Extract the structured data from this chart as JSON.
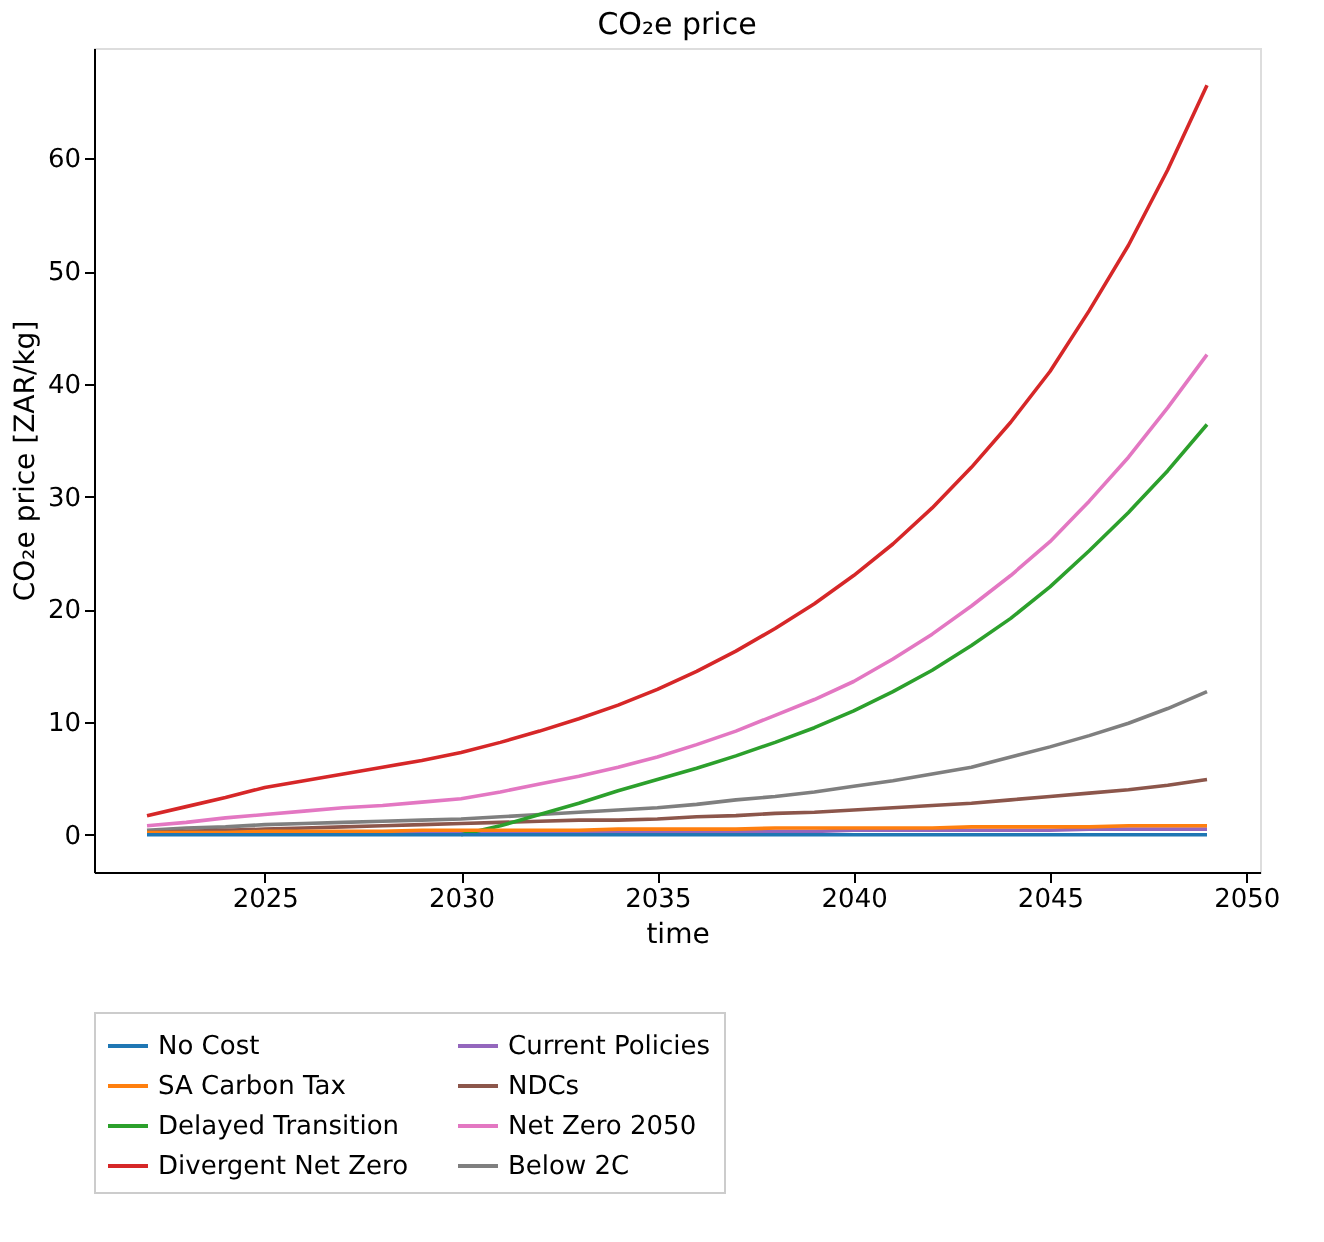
{
  "chart_data": {
    "type": "line",
    "title": "CO₂e price",
    "xlabel": "time",
    "ylabel": "CO₂e price [ZAR/kg]",
    "x": [
      2022,
      2023,
      2024,
      2025,
      2026,
      2027,
      2028,
      2029,
      2030,
      2031,
      2032,
      2033,
      2034,
      2035,
      2036,
      2037,
      2038,
      2039,
      2040,
      2041,
      2042,
      2043,
      2044,
      2045,
      2046,
      2047,
      2048,
      2049
    ],
    "series": [
      {
        "name": "No Cost",
        "color": "#1f77b4",
        "values": [
          0,
          0,
          0,
          0,
          0,
          0,
          0,
          0,
          0,
          0,
          0,
          0,
          0,
          0,
          0,
          0,
          0,
          0,
          0,
          0,
          0,
          0,
          0,
          0,
          0,
          0,
          0,
          0
        ]
      },
      {
        "name": "SA Carbon Tax",
        "color": "#ff7f0e",
        "values": [
          0.2,
          0.2,
          0.2,
          0.3,
          0.3,
          0.3,
          0.3,
          0.4,
          0.4,
          0.4,
          0.4,
          0.4,
          0.5,
          0.5,
          0.5,
          0.5,
          0.6,
          0.6,
          0.6,
          0.6,
          0.6,
          0.7,
          0.7,
          0.7,
          0.7,
          0.8,
          0.8,
          0.8
        ]
      },
      {
        "name": "Delayed Transition",
        "color": "#2ca02c",
        "values": [
          null,
          null,
          null,
          null,
          null,
          null,
          null,
          null,
          0,
          0.8,
          1.8,
          2.8,
          3.9,
          4.9,
          5.9,
          7.0,
          8.2,
          9.5,
          11.0,
          12.7,
          14.6,
          16.8,
          19.2,
          22.0,
          25.2,
          28.6,
          32.3,
          36.4
        ]
      },
      {
        "name": "Divergent Net Zero",
        "color": "#d62728",
        "values": [
          1.7,
          2.5,
          3.3,
          4.2,
          4.8,
          5.4,
          6.0,
          6.6,
          7.3,
          8.2,
          9.2,
          10.3,
          11.5,
          12.9,
          14.5,
          16.3,
          18.3,
          20.5,
          23.0,
          25.8,
          29.0,
          32.6,
          36.6,
          41.1,
          46.5,
          52.3,
          59.0,
          66.5
        ]
      },
      {
        "name": "Current Policies",
        "color": "#9467bd",
        "values": [
          null,
          null,
          null,
          null,
          null,
          null,
          0.2,
          0.2,
          0.2,
          0.2,
          0.2,
          0.3,
          0.3,
          0.3,
          0.3,
          0.3,
          0.3,
          0.3,
          0.4,
          0.4,
          0.4,
          0.4,
          0.4,
          0.4,
          0.5,
          0.5,
          0.5,
          0.5
        ]
      },
      {
        "name": "NDCs",
        "color": "#8c564b",
        "values": [
          0.2,
          0.3,
          0.4,
          0.5,
          0.6,
          0.7,
          0.8,
          0.9,
          1.0,
          1.1,
          1.2,
          1.3,
          1.3,
          1.4,
          1.6,
          1.7,
          1.9,
          2.0,
          2.2,
          2.4,
          2.6,
          2.8,
          3.1,
          3.4,
          3.7,
          4.0,
          4.4,
          4.9
        ]
      },
      {
        "name": "Net Zero 2050",
        "color": "#e377c2",
        "values": [
          0.8,
          1.1,
          1.5,
          1.8,
          2.1,
          2.4,
          2.6,
          2.9,
          3.2,
          3.8,
          4.5,
          5.2,
          6.0,
          6.9,
          8.0,
          9.2,
          10.6,
          12.0,
          13.6,
          15.6,
          17.8,
          20.3,
          23.0,
          26.0,
          29.6,
          33.5,
          37.9,
          42.6
        ]
      },
      {
        "name": "Below 2C",
        "color": "#7f7f7f",
        "values": [
          0.4,
          0.6,
          0.7,
          0.9,
          1.0,
          1.1,
          1.2,
          1.3,
          1.4,
          1.6,
          1.8,
          2.0,
          2.2,
          2.4,
          2.7,
          3.1,
          3.4,
          3.8,
          4.3,
          4.8,
          5.4,
          6.0,
          6.9,
          7.8,
          8.8,
          9.9,
          11.2,
          12.7
        ]
      }
    ],
    "xlim": [
      2020.65,
      2050.35
    ],
    "ylim": [
      -3.3,
      69.8
    ],
    "xticks": [
      2025,
      2030,
      2035,
      2040,
      2045,
      2050
    ],
    "yticks": [
      0,
      10,
      20,
      30,
      40,
      50,
      60
    ],
    "grid": false,
    "legend": "bottom",
    "marker": "none",
    "line_style": "solid"
  }
}
